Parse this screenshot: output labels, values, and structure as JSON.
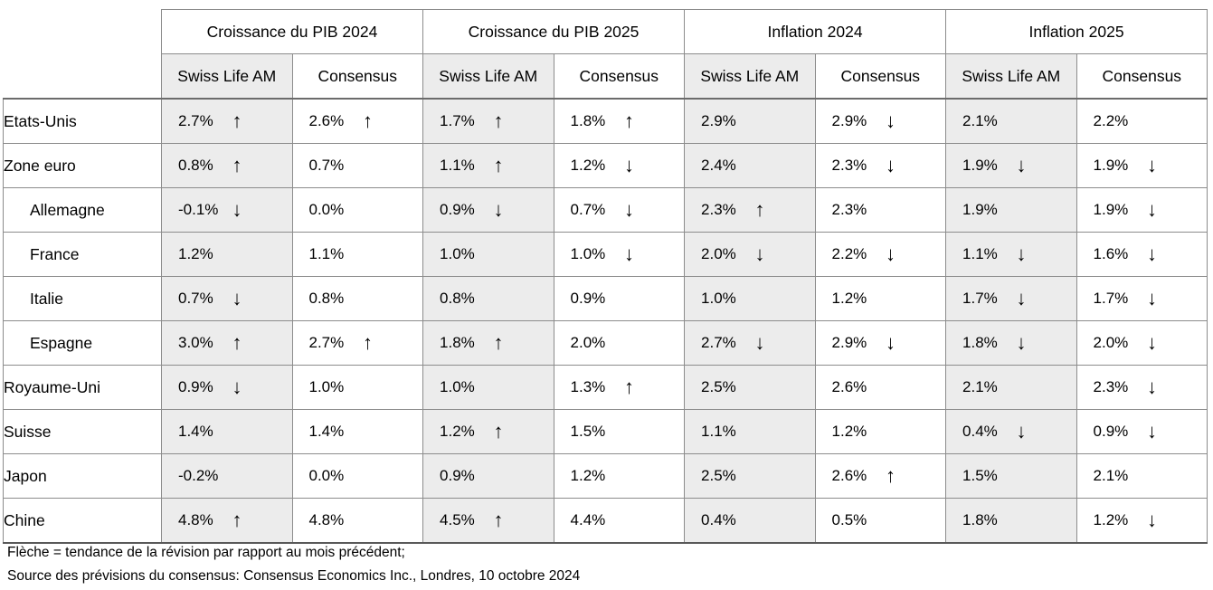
{
  "chart_data": {
    "type": "table",
    "title": "",
    "column_groups": [
      "Croissance du PIB 2024",
      "Croissance du PIB 2025",
      "Inflation 2024",
      "Inflation 2025"
    ],
    "subcolumns": [
      "Swiss Life AM",
      "Consensus"
    ],
    "columns": [
      "Croissance du PIB 2024 - Swiss Life AM",
      "Croissance du PIB 2024 - Consensus",
      "Croissance du PIB 2025 - Swiss Life AM",
      "Croissance du PIB 2025 - Consensus",
      "Inflation 2024 - Swiss Life AM",
      "Inflation 2024 - Consensus",
      "Inflation 2025 - Swiss Life AM",
      "Inflation 2025 - Consensus"
    ],
    "rows": [
      {
        "country": "Etats-Unis",
        "indent": false,
        "cells": [
          {
            "v": "2.7%",
            "a": "up"
          },
          {
            "v": "2.6%",
            "a": "up"
          },
          {
            "v": "1.7%",
            "a": "up"
          },
          {
            "v": "1.8%",
            "a": "up"
          },
          {
            "v": "2.9%",
            "a": ""
          },
          {
            "v": "2.9%",
            "a": "down"
          },
          {
            "v": "2.1%",
            "a": ""
          },
          {
            "v": "2.2%",
            "a": ""
          }
        ]
      },
      {
        "country": "Zone euro",
        "indent": false,
        "cells": [
          {
            "v": "0.8%",
            "a": "up"
          },
          {
            "v": "0.7%",
            "a": ""
          },
          {
            "v": "1.1%",
            "a": "up"
          },
          {
            "v": "1.2%",
            "a": "down"
          },
          {
            "v": "2.4%",
            "a": ""
          },
          {
            "v": "2.3%",
            "a": "down"
          },
          {
            "v": "1.9%",
            "a": "down"
          },
          {
            "v": "1.9%",
            "a": "down"
          }
        ]
      },
      {
        "country": "Allemagne",
        "indent": true,
        "cells": [
          {
            "v": "-0.1%",
            "a": "down"
          },
          {
            "v": "0.0%",
            "a": ""
          },
          {
            "v": "0.9%",
            "a": "down"
          },
          {
            "v": "0.7%",
            "a": "down"
          },
          {
            "v": "2.3%",
            "a": "up"
          },
          {
            "v": "2.3%",
            "a": ""
          },
          {
            "v": "1.9%",
            "a": ""
          },
          {
            "v": "1.9%",
            "a": "down"
          }
        ]
      },
      {
        "country": "France",
        "indent": true,
        "cells": [
          {
            "v": "1.2%",
            "a": ""
          },
          {
            "v": "1.1%",
            "a": ""
          },
          {
            "v": "1.0%",
            "a": ""
          },
          {
            "v": "1.0%",
            "a": "down"
          },
          {
            "v": "2.0%",
            "a": "down"
          },
          {
            "v": "2.2%",
            "a": "down"
          },
          {
            "v": "1.1%",
            "a": "down"
          },
          {
            "v": "1.6%",
            "a": "down"
          }
        ]
      },
      {
        "country": "Italie",
        "indent": true,
        "cells": [
          {
            "v": "0.7%",
            "a": "down"
          },
          {
            "v": "0.8%",
            "a": ""
          },
          {
            "v": "0.8%",
            "a": ""
          },
          {
            "v": "0.9%",
            "a": ""
          },
          {
            "v": "1.0%",
            "a": ""
          },
          {
            "v": "1.2%",
            "a": ""
          },
          {
            "v": "1.7%",
            "a": "down"
          },
          {
            "v": "1.7%",
            "a": "down"
          }
        ]
      },
      {
        "country": "Espagne",
        "indent": true,
        "cells": [
          {
            "v": "3.0%",
            "a": "up"
          },
          {
            "v": "2.7%",
            "a": "up"
          },
          {
            "v": "1.8%",
            "a": "up"
          },
          {
            "v": "2.0%",
            "a": ""
          },
          {
            "v": "2.7%",
            "a": "down"
          },
          {
            "v": "2.9%",
            "a": "down"
          },
          {
            "v": "1.8%",
            "a": "down"
          },
          {
            "v": "2.0%",
            "a": "down"
          }
        ]
      },
      {
        "country": "Royaume-Uni",
        "indent": false,
        "cells": [
          {
            "v": "0.9%",
            "a": "down"
          },
          {
            "v": "1.0%",
            "a": ""
          },
          {
            "v": "1.0%",
            "a": ""
          },
          {
            "v": "1.3%",
            "a": "up"
          },
          {
            "v": "2.5%",
            "a": ""
          },
          {
            "v": "2.6%",
            "a": ""
          },
          {
            "v": "2.1%",
            "a": ""
          },
          {
            "v": "2.3%",
            "a": "down"
          }
        ]
      },
      {
        "country": "Suisse",
        "indent": false,
        "cells": [
          {
            "v": "1.4%",
            "a": ""
          },
          {
            "v": "1.4%",
            "a": ""
          },
          {
            "v": "1.2%",
            "a": "up"
          },
          {
            "v": "1.5%",
            "a": ""
          },
          {
            "v": "1.1%",
            "a": ""
          },
          {
            "v": "1.2%",
            "a": ""
          },
          {
            "v": "0.4%",
            "a": "down"
          },
          {
            "v": "0.9%",
            "a": "down"
          }
        ]
      },
      {
        "country": "Japon",
        "indent": false,
        "cells": [
          {
            "v": "-0.2%",
            "a": ""
          },
          {
            "v": "0.0%",
            "a": ""
          },
          {
            "v": "0.9%",
            "a": ""
          },
          {
            "v": "1.2%",
            "a": ""
          },
          {
            "v": "2.5%",
            "a": ""
          },
          {
            "v": "2.6%",
            "a": "up"
          },
          {
            "v": "1.5%",
            "a": ""
          },
          {
            "v": "2.1%",
            "a": ""
          }
        ]
      },
      {
        "country": "Chine",
        "indent": false,
        "cells": [
          {
            "v": "4.8%",
            "a": "up"
          },
          {
            "v": "4.8%",
            "a": ""
          },
          {
            "v": "4.5%",
            "a": "up"
          },
          {
            "v": "4.4%",
            "a": ""
          },
          {
            "v": "0.4%",
            "a": ""
          },
          {
            "v": "0.5%",
            "a": ""
          },
          {
            "v": "1.8%",
            "a": ""
          },
          {
            "v": "1.2%",
            "a": "down"
          }
        ]
      }
    ],
    "layout_hints": {
      "shaded_subcolumn": "Swiss Life AM",
      "arrow_meaning": "revision trend vs previous month"
    }
  },
  "icons": {
    "up": "↑",
    "down": "↓"
  },
  "colors": {
    "shaded_column_bg": "#ececec",
    "grid_border": "#8c8c8c",
    "outer_border": "#595959",
    "text": "#000000"
  },
  "footnotes": [
    "Flèche = tendance de la révision par rapport au mois précédent;",
    "Source des prévisions du consensus: Consensus Economics Inc., Londres, 10 octobre 2024"
  ]
}
